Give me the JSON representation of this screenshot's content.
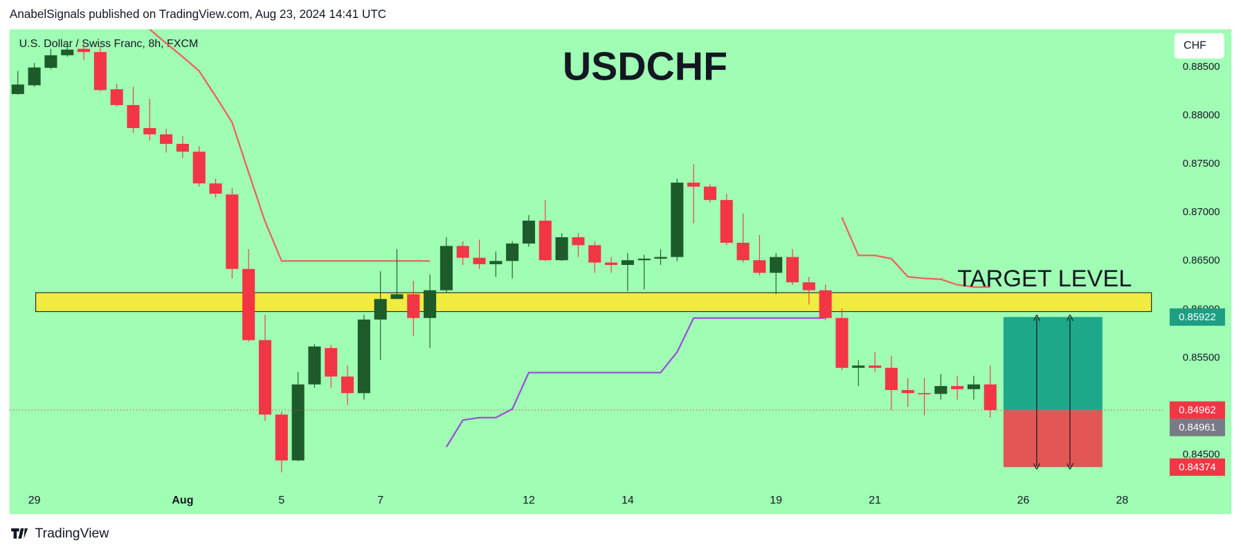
{
  "header": {
    "text": "AnabelSignals published on TradingView.com, Aug 23, 2024 14:41 UTC"
  },
  "footer": {
    "brand": "TradingView"
  },
  "chart_data": {
    "type": "candlestick",
    "title": "USDCHF",
    "subtitle": "U.S. Dollar / Swiss Franc, 8h, FXCM",
    "currency": "CHF",
    "categories": [
      null,
      "29",
      null,
      null,
      null,
      null,
      null,
      null,
      null,
      null,
      "Aug",
      null,
      null,
      null,
      null,
      null,
      "5",
      null,
      null,
      null,
      null,
      null,
      "7",
      null,
      null,
      null,
      null,
      null,
      null,
      null,
      null,
      "12",
      null,
      null,
      null,
      null,
      null,
      "14",
      null,
      null,
      null,
      null,
      null,
      null,
      null,
      null,
      "19",
      null,
      null,
      null,
      null,
      null,
      "21",
      null,
      null,
      null,
      null,
      null,
      null,
      null,
      null,
      "26",
      null,
      null,
      null,
      null,
      null,
      "28",
      null,
      null
    ],
    "open": [
      0.88222,
      0.88312,
      0.88492,
      0.88622,
      0.88688,
      0.88655,
      0.88271,
      0.88108,
      0.87871,
      0.87806,
      0.87708,
      0.87627,
      0.873,
      0.87186,
      0.86418,
      0.85684,
      0.84916,
      0.84443,
      0.85227,
      0.85602,
      0.85308,
      0.85137,
      0.85896,
      0.86108,
      0.86157,
      0.85912,
      0.86198,
      0.86655,
      0.86533,
      0.86467,
      0.865,
      0.8668,
      0.86916,
      0.86508,
      0.86745,
      0.86663,
      0.86484,
      0.86459,
      0.86508,
      0.86524,
      0.86541,
      0.87308,
      0.87267,
      0.87129,
      0.86688,
      0.86508,
      0.86378,
      0.86541,
      0.8628,
      0.86198,
      0.85912,
      0.85398,
      0.85422,
      0.85398,
      0.85169,
      0.85137,
      0.85129,
      0.8521,
      0.85178,
      0.85227,
      null,
      null,
      null,
      null,
      null,
      null,
      null,
      null,
      null,
      null
    ],
    "high": [
      0.88459,
      0.88541,
      0.88688,
      0.88745,
      0.88745,
      0.8872,
      0.88329,
      0.88296,
      0.88173,
      0.87863,
      0.8779,
      0.87684,
      0.87349,
      0.87251,
      0.86622,
      0.85945,
      0.84949,
      0.85357,
      0.85643,
      0.85635,
      0.85422,
      0.85945,
      0.86394,
      0.86622,
      0.86296,
      0.86361,
      0.86745,
      0.86704,
      0.8672,
      0.86598,
      0.86704,
      0.86973,
      0.87129,
      0.86786,
      0.86786,
      0.86704,
      0.86541,
      0.86582,
      0.86565,
      0.86622,
      0.87349,
      0.87496,
      0.87292,
      0.87194,
      0.8699,
      0.86769,
      0.86582,
      0.86622,
      0.86337,
      0.86255,
      0.8601,
      0.8548,
      0.85561,
      0.8552,
      0.85292,
      0.85292,
      0.85333,
      0.85316,
      0.85316,
      0.85422,
      null,
      null,
      null,
      null,
      null,
      null,
      null,
      null,
      null,
      null
    ],
    "low": [
      0.88214,
      0.88296,
      0.88476,
      0.88606,
      0.88573,
      0.88247,
      0.88092,
      0.87822,
      0.87741,
      0.87618,
      0.87561,
      0.87267,
      0.87153,
      0.8632,
      0.85667,
      0.84851,
      0.8432,
      0.84435,
      0.85194,
      0.85194,
      0.85014,
      0.85071,
      0.8548,
      0.86108,
      0.85724,
      0.85602,
      0.86173,
      0.86459,
      0.86418,
      0.86337,
      0.8632,
      0.86647,
      0.865,
      0.865,
      0.86541,
      0.86378,
      0.86378,
      0.8619,
      0.86206,
      0.86459,
      0.865,
      0.86888,
      0.87104,
      0.86663,
      0.86484,
      0.86353,
      0.86157,
      0.86255,
      0.86051,
      0.85888,
      0.85373,
      0.8521,
      0.85357,
      0.84965,
      0.84996,
      0.84908,
      0.85071,
      0.85071,
      0.85071,
      0.84884,
      null,
      null,
      null,
      null,
      null,
      null,
      null,
      null,
      null,
      null
    ],
    "close": [
      0.8832,
      0.88496,
      0.88622,
      0.8868,
      0.88655,
      0.88263,
      0.88108,
      0.87871,
      0.87806,
      0.87708,
      0.87627,
      0.873,
      0.87194,
      0.86418,
      0.85684,
      0.84916,
      0.84443,
      0.85227,
      0.85618,
      0.85308,
      0.85137,
      0.85896,
      0.86108,
      0.86157,
      0.85912,
      0.86198,
      0.86655,
      0.86533,
      0.86467,
      0.865,
      0.8668,
      0.86916,
      0.86508,
      0.86745,
      0.86663,
      0.86484,
      0.86459,
      0.86508,
      0.86524,
      0.86541,
      0.87308,
      0.87267,
      0.87129,
      0.86688,
      0.86508,
      0.86378,
      0.86541,
      0.8628,
      0.86198,
      0.85912,
      0.85398,
      0.85422,
      0.85398,
      0.85169,
      0.85137,
      0.85129,
      0.8521,
      0.85178,
      0.85227,
      0.84962,
      null,
      null,
      null,
      null,
      null,
      null,
      null,
      null,
      null,
      null
    ],
    "up_color": "#1e5b2a",
    "down_color": "#f23645",
    "lines": [
      {
        "color": "#f0605a",
        "values": [
          null,
          null,
          null,
          null,
          null,
          null,
          null,
          null,
          0.8889,
          0.88745,
          0.88606,
          0.88459,
          0.88198,
          0.87929,
          0.87414,
          0.86908,
          0.865,
          0.865,
          0.865,
          0.865,
          0.865,
          0.865,
          0.865,
          0.865,
          0.865,
          0.865,
          null,
          null,
          null,
          null,
          null,
          null,
          null,
          null,
          null,
          null,
          null,
          null,
          null,
          null,
          null,
          null,
          null,
          null,
          null,
          null,
          null,
          null,
          null,
          null,
          0.86949,
          0.86557,
          0.86557,
          0.86524,
          0.86337,
          0.8632,
          0.86312,
          0.86255,
          0.86231,
          0.86231,
          null,
          null,
          null,
          null,
          null,
          null,
          null,
          null,
          null,
          null
        ]
      },
      {
        "color": "#9b4fd8",
        "values": [
          null,
          null,
          null,
          null,
          null,
          null,
          null,
          null,
          null,
          null,
          null,
          null,
          null,
          null,
          null,
          null,
          null,
          null,
          null,
          null,
          null,
          null,
          null,
          null,
          null,
          null,
          0.84582,
          0.84859,
          0.84884,
          0.84884,
          0.84973,
          0.85349,
          0.85349,
          0.85349,
          0.85349,
          0.85349,
          0.85349,
          0.85349,
          0.85349,
          0.85349,
          0.85561,
          0.85912,
          0.85912,
          0.85912,
          0.85912,
          0.85912,
          0.85912,
          0.85912,
          0.85912,
          0.85912,
          null,
          null,
          null,
          null,
          null,
          null,
          null,
          null,
          null,
          null,
          null,
          null,
          null,
          null,
          null,
          null,
          null,
          null,
          null,
          null
        ]
      }
    ],
    "ylim": [
      0.8389,
      0.8889
    ],
    "yticks": [
      {
        "value": 0.845,
        "label": "0.84500"
      },
      {
        "value": 0.855,
        "label": "0.85500"
      },
      {
        "value": 0.86,
        "label": "0.86000"
      },
      {
        "value": 0.865,
        "label": "0.86500"
      },
      {
        "value": 0.87,
        "label": "0.87000"
      },
      {
        "value": 0.875,
        "label": "0.87500"
      },
      {
        "value": 0.88,
        "label": "0.88000"
      },
      {
        "value": 0.885,
        "label": "0.88500"
      }
    ],
    "grid": false,
    "zone": {
      "top": 0.86173,
      "bottom": 0.85978,
      "label": "TARGET LEVEL",
      "color": "#ffe92e"
    },
    "position": {
      "target": 0.85922,
      "entry": 0.84962,
      "stop": 0.84374,
      "target_color": "#1ea88a",
      "stop_color": "#e35656"
    },
    "markers": [
      {
        "value": 0.85922,
        "color": "#1e9e83"
      },
      {
        "value": 0.84962,
        "color": "#f23645"
      },
      {
        "value": 0.84961,
        "color": "#787b86"
      },
      {
        "value": 0.84374,
        "color": "#f23645"
      }
    ]
  }
}
